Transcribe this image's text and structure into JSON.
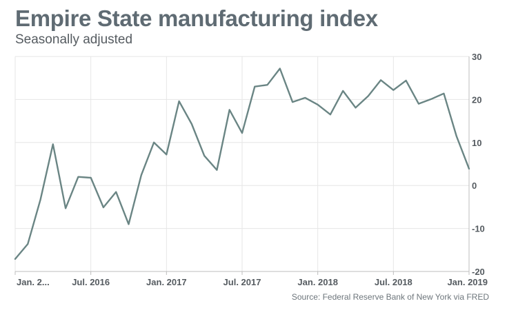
{
  "title": "Empire State manufacturing index",
  "subtitle": "Seasonally adjusted",
  "source": "Source: Federal Reserve Bank of New York via FRED",
  "colors": {
    "line": "#6a8584",
    "grid": "#e6e6e6",
    "axis": "#bdbdbd",
    "title": "#5f6b73"
  },
  "chart_data": {
    "type": "line",
    "x": [
      "2016-01",
      "2016-02",
      "2016-03",
      "2016-04",
      "2016-05",
      "2016-06",
      "2016-07",
      "2016-08",
      "2016-09",
      "2016-10",
      "2016-11",
      "2016-12",
      "2017-01",
      "2017-02",
      "2017-03",
      "2017-04",
      "2017-05",
      "2017-06",
      "2017-07",
      "2017-08",
      "2017-09",
      "2017-10",
      "2017-11",
      "2017-12",
      "2018-01",
      "2018-02",
      "2018-03",
      "2018-04",
      "2018-05",
      "2018-06",
      "2018-07",
      "2018-08",
      "2018-09",
      "2018-10",
      "2018-11",
      "2018-12",
      "2019-01"
    ],
    "series": [
      {
        "values": [
          -17.1,
          -13.6,
          -3.3,
          9.6,
          -5.3,
          2.0,
          1.8,
          -5.1,
          -1.5,
          -9.0,
          2.4,
          10.0,
          7.2,
          19.6,
          14.3,
          6.9,
          3.6,
          17.6,
          12.2,
          23.0,
          23.4,
          27.2,
          19.4,
          20.4,
          18.8,
          16.5,
          22.0,
          18.1,
          20.8,
          24.5,
          22.2,
          24.4,
          19.0,
          20.1,
          21.4,
          11.5,
          3.9
        ]
      }
    ],
    "xtick_labels": [
      "Jan. 2...",
      "Jul. 2016",
      "Jan. 2017",
      "Jul. 2017",
      "Jan. 2018",
      "Jul. 2018",
      "Jan. 2019"
    ],
    "xtick_values": [
      "2016-01",
      "2016-07",
      "2017-01",
      "2017-07",
      "2018-01",
      "2018-07",
      "2019-01"
    ],
    "ytick_labels": [
      "30",
      "20",
      "10",
      "0",
      "-10",
      "-20"
    ],
    "ytick_values": [
      30,
      20,
      10,
      0,
      -10,
      -20
    ],
    "ylim": [
      -20,
      30
    ],
    "xlabel": "",
    "ylabel": "",
    "grid": true,
    "y_axis_side": "right"
  }
}
